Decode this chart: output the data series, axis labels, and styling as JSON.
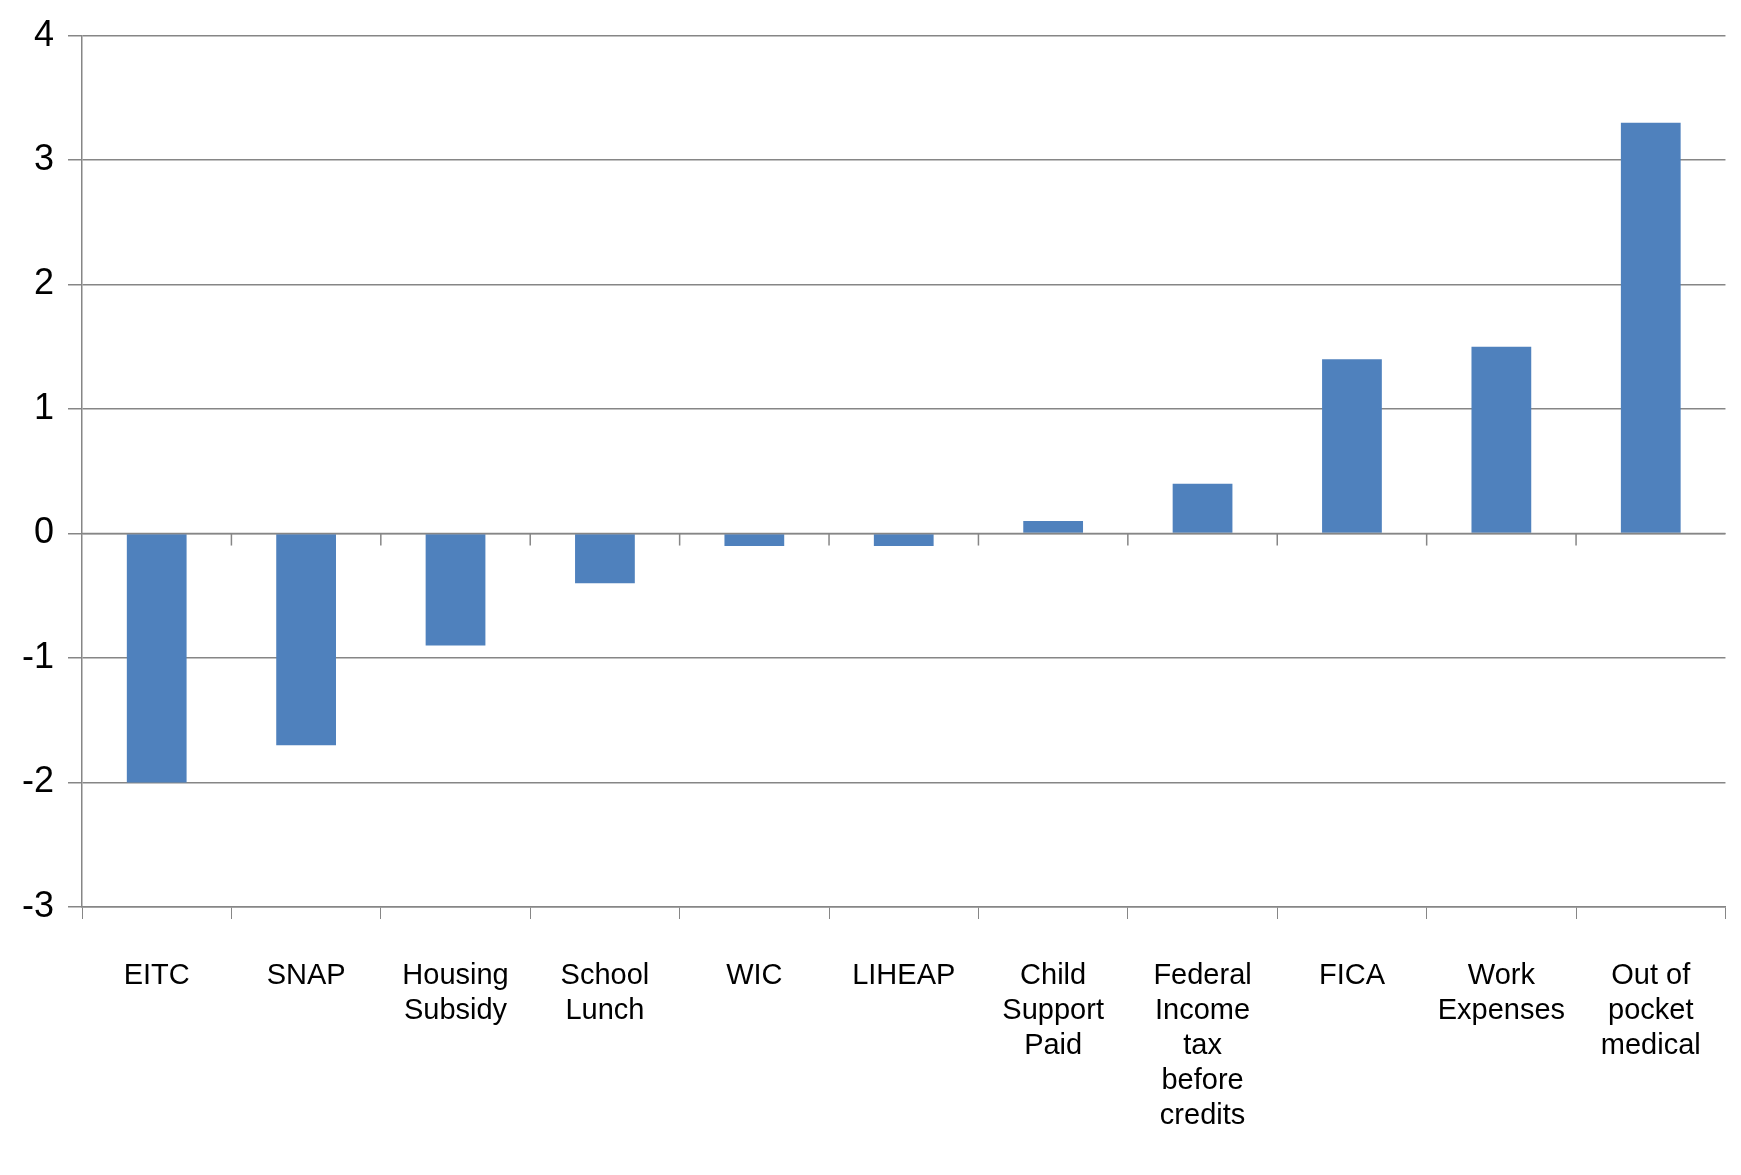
{
  "chart_data": {
    "type": "bar",
    "categories": [
      "EITC",
      "SNAP",
      "Housing Subsidy",
      "School Lunch",
      "WIC",
      "LIHEAP",
      "Child Support Paid",
      "Federal Income tax before credits",
      "FICA",
      "Work Expenses",
      "Out of pocket medical"
    ],
    "values": [
      -2,
      -1.7,
      -0.9,
      -0.4,
      -0.1,
      -0.1,
      0.1,
      0.4,
      1.4,
      1.5,
      3.3
    ],
    "color": "#4f81bd",
    "ylim": [
      -3,
      4
    ],
    "yticks": [
      -3,
      -2,
      -1,
      0,
      1,
      2,
      3,
      4
    ],
    "grid": "y",
    "legend": false
  }
}
